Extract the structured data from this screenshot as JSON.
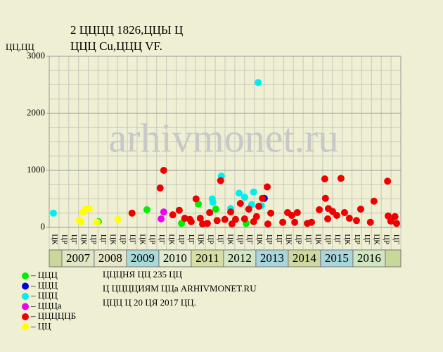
{
  "chart_data": {
    "type": "scatter",
    "title_lines": [
      "2 ЦЦЦЦ 1826,ЦЦЫ Ц",
      "ЦЦЦ Cu,ЦЦЦ VF."
    ],
    "y_label": "ЦЦ,ЦЦ",
    "watermark": "arhivmonet.ru",
    "xlim": [
      2006.61,
      2017.48
    ],
    "ylim": [
      0,
      3000
    ],
    "yticks": [
      0,
      1000,
      2000,
      3000
    ],
    "grid": true,
    "years": [
      2007,
      2008,
      2009,
      2010,
      2011,
      2012,
      2013,
      2014,
      2015,
      2016
    ],
    "quarter_labels": [
      "ЦК",
      "ЦР",
      "ЦГ",
      "ЦК",
      "ЦР",
      "ЦГ",
      "ЦК",
      "ЦР",
      "ЦГ",
      "ЦК",
      "ЦР",
      "ЦГ",
      "ЦК",
      "ЦР",
      "ЦГ",
      "ЦК",
      "ЦР",
      "ЦГ",
      "ЦК",
      "ЦР",
      "ЦГ",
      "ЦК",
      "ЦР",
      "ЦГ",
      "ЦК",
      "ЦР",
      "ЦГ",
      "ЦК",
      "ЦР",
      "ЦГ",
      "ЦК",
      "ЦР",
      "ЦГ",
      "ЦК",
      "ЦР",
      "ЦГ"
    ],
    "series": [
      {
        "name": "– ЦЦЦ",
        "color": "#00ee00",
        "x": [
          2008.13,
          2009.63,
          2010.7,
          2011.22,
          2011.76,
          2012.7
        ],
        "values": [
          100,
          310,
          70,
          410,
          320,
          70
        ]
      },
      {
        "name": "– ЦЦЦ",
        "color": "#0000dd",
        "x": [
          2013.26
        ],
        "values": [
          510
        ]
      },
      {
        "name": "– ЦЦЦ",
        "color": "#00eeee",
        "x": [
          2006.74,
          2011.65,
          2011.67,
          2011.93,
          2012.22,
          2012.48,
          2012.65,
          2012.93,
          2013.07,
          2013.17,
          2012.87
        ],
        "values": [
          250,
          500,
          440,
          900,
          330,
          600,
          530,
          620,
          2540,
          380,
          400
        ]
      },
      {
        "name": "– ЦЦЦа",
        "color": "#ee00ee",
        "x": [
          2010.15,
          2010.07
        ],
        "values": [
          270,
          150
        ]
      },
      {
        "name": "– ЦЦЦЦЦБ",
        "color": "#ee0000",
        "x": [
          2009.17,
          2010.15,
          2010.04,
          2010.43,
          2010.63,
          2010.8,
          2011.0,
          2011.15,
          2011.28,
          2011.5,
          2011.57,
          2011.8,
          2011.91,
          2012.04,
          2012.22,
          2012.37,
          2012.52,
          2012.65,
          2012.78,
          2013.02,
          2013.09,
          2013.2,
          2013.35,
          2013.46,
          2013.37,
          2013.83,
          2013.98,
          2014.11,
          2014.28,
          2014.2,
          2014.59,
          2014.72,
          2014.96,
          2015.13,
          2015.15,
          2015.24,
          2015.37,
          2015.5,
          2015.63,
          2015.74,
          2015.89,
          2016.11,
          2016.24,
          2016.54,
          2016.65,
          2017.07,
          2017.09,
          2017.17,
          2017.3,
          2017.35,
          2015.22,
          2010.96,
          2011.35,
          2012.26,
          2012.93
        ],
        "values": [
          250,
          1000,
          690,
          220,
          300,
          160,
          100,
          500,
          160,
          70,
          260,
          120,
          820,
          140,
          270,
          140,
          420,
          150,
          320,
          190,
          370,
          510,
          710,
          250,
          60,
          90,
          260,
          210,
          260,
          90,
          70,
          90,
          310,
          850,
          510,
          330,
          280,
          210,
          860,
          260,
          160,
          120,
          320,
          90,
          460,
          810,
          200,
          110,
          190,
          70,
          150,
          140,
          60,
          60,
          100
        ]
      },
      {
        "name": "– ЦЦ",
        "color": "#ffff00",
        "x": [
          2007.54,
          2007.65,
          2007.74,
          2007.85,
          2008.09,
          2008.74,
          2007.59
        ],
        "values": [
          120,
          270,
          320,
          330,
          90,
          140,
          100
        ]
      }
    ],
    "notes": [
      "ЦЦЦНЯ ЦЦ 235 ЦЦ",
      "Ц ЦЦЦЦИЯМ ЦЦа ARHIVMONET.RU",
      "ЦЦЦ Ц 20 ЦЯ 2017 ЦЦ."
    ]
  }
}
